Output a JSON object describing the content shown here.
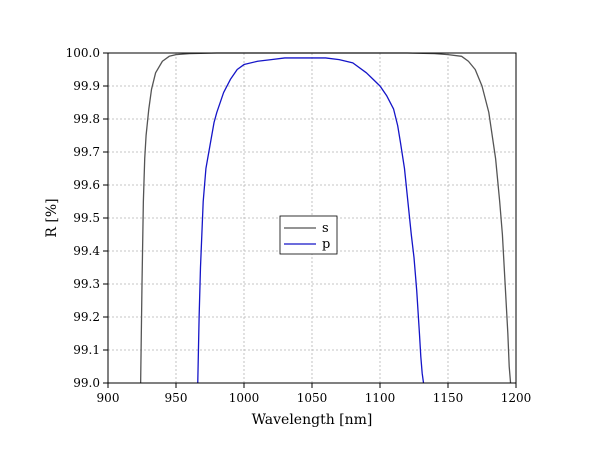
{
  "chart_data": {
    "type": "line",
    "title": "",
    "xlabel": "Wavelength [nm]",
    "ylabel": "R [%]",
    "xlim": [
      900,
      1200
    ],
    "ylim": [
      99.0,
      100.0
    ],
    "x_ticks": [
      900,
      950,
      1000,
      1050,
      1100,
      1150,
      1200
    ],
    "y_ticks": [
      99.0,
      99.1,
      99.2,
      99.3,
      99.4,
      99.5,
      99.6,
      99.7,
      99.8,
      99.9,
      100.0
    ],
    "x_tick_labels": [
      "900",
      "950",
      "1000",
      "1050",
      "1100",
      "1150",
      "1200"
    ],
    "y_tick_labels": [
      "99.0",
      "99.1",
      "99.2",
      "99.3",
      "99.4",
      "99.5",
      "99.6",
      "99.7",
      "99.8",
      "99.9",
      "100.0"
    ],
    "grid": true,
    "legend_position": "center",
    "series": [
      {
        "name": "s",
        "color": "#555555",
        "x": [
          924,
          925,
          926,
          927,
          928,
          930,
          932,
          935,
          940,
          945,
          950,
          960,
          980,
          1000,
          1050,
          1100,
          1120,
          1140,
          1150,
          1160,
          1165,
          1170,
          1175,
          1180,
          1185,
          1188,
          1190,
          1192,
          1194,
          1195,
          1196
        ],
        "y": [
          99.0,
          99.3,
          99.55,
          99.68,
          99.75,
          99.83,
          99.89,
          99.94,
          99.975,
          99.99,
          99.995,
          99.998,
          100.0,
          100.0,
          100.0,
          100.0,
          100.0,
          99.998,
          99.995,
          99.99,
          99.975,
          99.95,
          99.9,
          99.82,
          99.68,
          99.55,
          99.45,
          99.3,
          99.15,
          99.05,
          99.0
        ]
      },
      {
        "name": "p",
        "color": "#1515c8",
        "x": [
          966,
          967,
          968,
          969,
          970,
          972,
          975,
          978,
          980,
          985,
          990,
          995,
          1000,
          1010,
          1020,
          1030,
          1040,
          1050,
          1060,
          1070,
          1080,
          1090,
          1095,
          1100,
          1105,
          1110,
          1113,
          1115,
          1118,
          1120,
          1123,
          1125,
          1127,
          1129,
          1130,
          1131,
          1132
        ],
        "y": [
          99.0,
          99.2,
          99.35,
          99.45,
          99.55,
          99.65,
          99.72,
          99.79,
          99.82,
          99.88,
          99.92,
          99.95,
          99.965,
          99.975,
          99.98,
          99.985,
          99.985,
          99.985,
          99.985,
          99.98,
          99.97,
          99.94,
          99.92,
          99.9,
          99.87,
          99.83,
          99.78,
          99.73,
          99.65,
          99.57,
          99.45,
          99.38,
          99.28,
          99.15,
          99.08,
          99.03,
          99.0
        ]
      }
    ]
  }
}
